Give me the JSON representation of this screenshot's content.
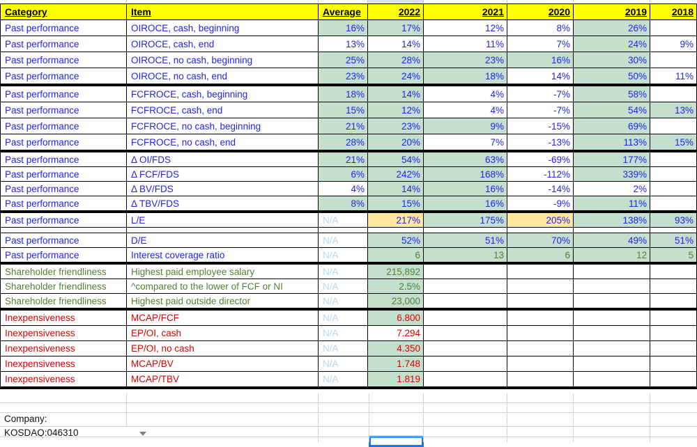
{
  "colors": {
    "header_fill": "#ffff00",
    "good_fill_green": "#c3dfcd",
    "warn_fill_tan": "#ffe79e",
    "text_blue": "#2222f2",
    "text_green": "#538135",
    "text_red": "#e00000",
    "text_na": "#bdd4ee",
    "selection_blue": "#1a73e8",
    "column_highlight_blue": "#d9e2f3",
    "gridline_gray": "#d4d4d4"
  },
  "table": {
    "columns": [
      {
        "label": "Category",
        "align": "left"
      },
      {
        "label": "Item",
        "align": "left"
      },
      {
        "label": "Average",
        "align": "left"
      },
      {
        "label": "2022",
        "align": "right"
      },
      {
        "label": "2021",
        "align": "right"
      },
      {
        "label": "2020",
        "align": "right"
      },
      {
        "label": "2019",
        "align": "right"
      },
      {
        "label": "2018",
        "align": "right"
      }
    ],
    "entries": [
      {
        "type": "row",
        "sec": 0,
        "cfg": "blue",
        "vfg": "blue",
        "category": "Past performance",
        "item": "OIROCE, cash, beginning",
        "values": [
          {
            "t": "16%",
            "bg": "g"
          },
          {
            "t": "17%",
            "bg": "g"
          },
          {
            "t": "12%",
            "bg": "w"
          },
          {
            "t": "8%",
            "bg": "w"
          },
          {
            "t": "26%",
            "bg": "g"
          },
          {
            "t": "",
            "bg": "w"
          }
        ]
      },
      {
        "type": "row",
        "sec": 0,
        "cfg": "blue",
        "vfg": "blue",
        "category": "Past performance",
        "item": "OIROCE, cash, end",
        "values": [
          {
            "t": "13%",
            "bg": "w"
          },
          {
            "t": "14%",
            "bg": "w"
          },
          {
            "t": "11%",
            "bg": "w"
          },
          {
            "t": "7%",
            "bg": "w"
          },
          {
            "t": "24%",
            "bg": "g"
          },
          {
            "t": "9%",
            "bg": "w"
          }
        ]
      },
      {
        "type": "row",
        "sec": 0,
        "cfg": "blue",
        "vfg": "blue",
        "category": "Past performance",
        "item": "OIROCE, no cash, beginning",
        "values": [
          {
            "t": "25%",
            "bg": "g"
          },
          {
            "t": "28%",
            "bg": "g"
          },
          {
            "t": "23%",
            "bg": "g"
          },
          {
            "t": "16%",
            "bg": "g"
          },
          {
            "t": "30%",
            "bg": "g"
          },
          {
            "t": "",
            "bg": "w"
          }
        ]
      },
      {
        "type": "row",
        "sec": 0,
        "cfg": "blue",
        "vfg": "blue",
        "category": "Past performance",
        "item": "OIROCE, no cash, end",
        "values": [
          {
            "t": "23%",
            "bg": "g"
          },
          {
            "t": "24%",
            "bg": "g"
          },
          {
            "t": "18%",
            "bg": "g"
          },
          {
            "t": "14%",
            "bg": "w"
          },
          {
            "t": "50%",
            "bg": "g"
          },
          {
            "t": "11%",
            "bg": "w"
          }
        ]
      },
      {
        "type": "sep"
      },
      {
        "type": "row",
        "sec": 1,
        "cfg": "blue",
        "vfg": "blue",
        "category": "Past performance",
        "item": "FCFROCE, cash, beginning",
        "values": [
          {
            "t": "18%",
            "bg": "g"
          },
          {
            "t": "14%",
            "bg": "g"
          },
          {
            "t": "4%",
            "bg": "w"
          },
          {
            "t": "-7%",
            "bg": "w"
          },
          {
            "t": "58%",
            "bg": "g"
          },
          {
            "t": "",
            "bg": "w"
          }
        ]
      },
      {
        "type": "row",
        "sec": 1,
        "cfg": "blue",
        "vfg": "blue",
        "category": "Past performance",
        "item": "FCFROCE, cash, end",
        "values": [
          {
            "t": "15%",
            "bg": "g"
          },
          {
            "t": "12%",
            "bg": "g"
          },
          {
            "t": "4%",
            "bg": "w"
          },
          {
            "t": "-7%",
            "bg": "w"
          },
          {
            "t": "54%",
            "bg": "g"
          },
          {
            "t": "13%",
            "bg": "g"
          }
        ]
      },
      {
        "type": "row",
        "sec": 1,
        "cfg": "blue",
        "vfg": "blue",
        "category": "Past performance",
        "item": "FCFROCE, no cash, beginning",
        "values": [
          {
            "t": "21%",
            "bg": "g"
          },
          {
            "t": "23%",
            "bg": "g"
          },
          {
            "t": "9%",
            "bg": "g"
          },
          {
            "t": "-15%",
            "bg": "w"
          },
          {
            "t": "69%",
            "bg": "g"
          },
          {
            "t": "",
            "bg": "w"
          }
        ]
      },
      {
        "type": "row",
        "sec": 1,
        "cfg": "blue",
        "vfg": "blue",
        "category": "Past performance",
        "item": "FCFROCE, no cash, end",
        "values": [
          {
            "t": "28%",
            "bg": "g"
          },
          {
            "t": "20%",
            "bg": "g"
          },
          {
            "t": "7%",
            "bg": "w"
          },
          {
            "t": "-13%",
            "bg": "w"
          },
          {
            "t": "113%",
            "bg": "g"
          },
          {
            "t": "15%",
            "bg": "g"
          }
        ]
      },
      {
        "type": "sep"
      },
      {
        "type": "row",
        "sec": 2,
        "cfg": "blue",
        "vfg": "blue",
        "category": "Past performance",
        "item": "Δ OI/FDS",
        "values": [
          {
            "t": "21%",
            "bg": "g"
          },
          {
            "t": "54%",
            "bg": "g"
          },
          {
            "t": "63%",
            "bg": "g"
          },
          {
            "t": "-69%",
            "bg": "w"
          },
          {
            "t": "177%",
            "bg": "g"
          },
          {
            "t": "",
            "bg": "w"
          }
        ]
      },
      {
        "type": "row",
        "sec": 2,
        "cfg": "blue",
        "vfg": "blue",
        "category": "Past performance",
        "item": "Δ FCF/FDS",
        "values": [
          {
            "t": "6%",
            "bg": "g"
          },
          {
            "t": "242%",
            "bg": "g"
          },
          {
            "t": "168%",
            "bg": "g"
          },
          {
            "t": "-112%",
            "bg": "w"
          },
          {
            "t": "339%",
            "bg": "g"
          },
          {
            "t": "",
            "bg": "w"
          }
        ]
      },
      {
        "type": "row",
        "sec": 2,
        "cfg": "blue",
        "vfg": "blue",
        "category": "Past performance",
        "item": "Δ BV/FDS",
        "values": [
          {
            "t": "4%",
            "bg": "w"
          },
          {
            "t": "14%",
            "bg": "g"
          },
          {
            "t": "16%",
            "bg": "g"
          },
          {
            "t": "-14%",
            "bg": "w"
          },
          {
            "t": "2%",
            "bg": "w"
          },
          {
            "t": "",
            "bg": "w"
          }
        ]
      },
      {
        "type": "row",
        "sec": 2,
        "cfg": "blue",
        "vfg": "blue",
        "category": "Past performance",
        "item": "Δ TBV/FDS",
        "values": [
          {
            "t": "8%",
            "bg": "g"
          },
          {
            "t": "15%",
            "bg": "g"
          },
          {
            "t": "16%",
            "bg": "g"
          },
          {
            "t": "-9%",
            "bg": "w"
          },
          {
            "t": "11%",
            "bg": "g"
          },
          {
            "t": "",
            "bg": "w"
          }
        ]
      },
      {
        "type": "sep"
      },
      {
        "type": "row",
        "sec": 3,
        "cfg": "blue",
        "vfg": "blue",
        "category": "Past performance",
        "item": "L/E",
        "values": [
          {
            "t": "N/A",
            "bg": "w",
            "fg": "na"
          },
          {
            "t": "217%",
            "bg": "t"
          },
          {
            "t": "175%",
            "bg": "g"
          },
          {
            "t": "205%",
            "bg": "t"
          },
          {
            "t": "138%",
            "bg": "g"
          },
          {
            "t": "93%",
            "bg": "g"
          }
        ]
      },
      {
        "type": "gap"
      },
      {
        "type": "row",
        "sec": 3,
        "cfg": "blue",
        "vfg": "blue",
        "category": "Past performance",
        "item": "D/E",
        "values": [
          {
            "t": "N/A",
            "bg": "w",
            "fg": "na"
          },
          {
            "t": "52%",
            "bg": "g"
          },
          {
            "t": "51%",
            "bg": "g"
          },
          {
            "t": "70%",
            "bg": "g"
          },
          {
            "t": "49%",
            "bg": "g"
          },
          {
            "t": "51%",
            "bg": "g"
          }
        ]
      },
      {
        "type": "row",
        "sec": 3,
        "cfg": "blue",
        "vfg": "green",
        "category": "Past performance",
        "item": "Interest coverage ratio",
        "values": [
          {
            "t": "N/A",
            "bg": "w",
            "fg": "na"
          },
          {
            "t": "6",
            "bg": "g"
          },
          {
            "t": "13",
            "bg": "g"
          },
          {
            "t": "6",
            "bg": "g"
          },
          {
            "t": "12",
            "bg": "g"
          },
          {
            "t": "5",
            "bg": "g"
          }
        ]
      },
      {
        "type": "sep"
      },
      {
        "type": "row",
        "sec": 4,
        "cfg": "green",
        "vfg": "green",
        "category": "Shareholder friendliness",
        "item": "Highest paid employee salary",
        "values": [
          {
            "t": "N/A",
            "bg": "w",
            "fg": "na"
          },
          {
            "t": "215,892",
            "bg": "g"
          },
          {
            "t": "",
            "bg": "w"
          },
          {
            "t": "",
            "bg": "w"
          },
          {
            "t": "",
            "bg": "w"
          },
          {
            "t": "",
            "bg": "w"
          }
        ]
      },
      {
        "type": "row",
        "sec": 4,
        "cfg": "green",
        "vfg": "green",
        "category": "Shareholder friendliness",
        "item": "^compared to the lower of FCF or NI",
        "values": [
          {
            "t": "N/A",
            "bg": "w",
            "fg": "na"
          },
          {
            "t": "2.5%",
            "bg": "g"
          },
          {
            "t": "",
            "bg": "w"
          },
          {
            "t": "",
            "bg": "w"
          },
          {
            "t": "",
            "bg": "w"
          },
          {
            "t": "",
            "bg": "w"
          }
        ]
      },
      {
        "type": "row",
        "sec": 4,
        "cfg": "green",
        "vfg": "green",
        "category": "Shareholder friendliness",
        "item": "Highest paid outside director",
        "values": [
          {
            "t": "N/A",
            "bg": "w",
            "fg": "na"
          },
          {
            "t": "23,000",
            "bg": "g"
          },
          {
            "t": "",
            "bg": "w"
          },
          {
            "t": "",
            "bg": "w"
          },
          {
            "t": "",
            "bg": "w"
          },
          {
            "t": "",
            "bg": "w"
          }
        ]
      },
      {
        "type": "sep"
      },
      {
        "type": "row",
        "sec": 5,
        "cfg": "red",
        "vfg": "red",
        "category": "Inexpensiveness",
        "item": "MCAP/FCF",
        "values": [
          {
            "t": "N/A",
            "bg": "w",
            "fg": "na"
          },
          {
            "t": "6.800",
            "bg": "g"
          },
          {
            "t": "",
            "bg": "w"
          },
          {
            "t": "",
            "bg": "w"
          },
          {
            "t": "",
            "bg": "w"
          },
          {
            "t": "",
            "bg": "w"
          }
        ]
      },
      {
        "type": "row",
        "sec": 5,
        "cfg": "red",
        "vfg": "red",
        "category": "Inexpensiveness",
        "item": "EP/OI, cash",
        "values": [
          {
            "t": "N/A",
            "bg": "w",
            "fg": "na"
          },
          {
            "t": "7.294",
            "bg": "w"
          },
          {
            "t": "",
            "bg": "w"
          },
          {
            "t": "",
            "bg": "w"
          },
          {
            "t": "",
            "bg": "w"
          },
          {
            "t": "",
            "bg": "w"
          }
        ]
      },
      {
        "type": "row",
        "sec": 5,
        "cfg": "red",
        "vfg": "red",
        "category": "Inexpensiveness",
        "item": "EP/OI, no cash",
        "values": [
          {
            "t": "N/A",
            "bg": "w",
            "fg": "na"
          },
          {
            "t": "4.350",
            "bg": "g"
          },
          {
            "t": "",
            "bg": "w"
          },
          {
            "t": "",
            "bg": "w"
          },
          {
            "t": "",
            "bg": "w"
          },
          {
            "t": "",
            "bg": "w"
          }
        ]
      },
      {
        "type": "row",
        "sec": 5,
        "cfg": "red",
        "vfg": "red",
        "category": "Inexpensiveness",
        "item": "MCAP/BV",
        "values": [
          {
            "t": "N/A",
            "bg": "w",
            "fg": "na"
          },
          {
            "t": "1.748",
            "bg": "g"
          },
          {
            "t": "",
            "bg": "w"
          },
          {
            "t": "",
            "bg": "w"
          },
          {
            "t": "",
            "bg": "w"
          },
          {
            "t": "",
            "bg": "w"
          }
        ]
      },
      {
        "type": "row",
        "sec": 5,
        "cfg": "red",
        "vfg": "red",
        "category": "Inexpensiveness",
        "item": "MCAP/TBV",
        "values": [
          {
            "t": "N/A",
            "bg": "w",
            "fg": "na"
          },
          {
            "t": "1.819",
            "bg": "g"
          },
          {
            "t": "",
            "bg": "w"
          },
          {
            "t": "",
            "bg": "w"
          },
          {
            "t": "",
            "bg": "w"
          },
          {
            "t": "",
            "bg": "w"
          }
        ]
      },
      {
        "type": "sep"
      }
    ]
  },
  "footer": {
    "company_label": "Company:",
    "company_value": "KOSDAQ:046310"
  }
}
